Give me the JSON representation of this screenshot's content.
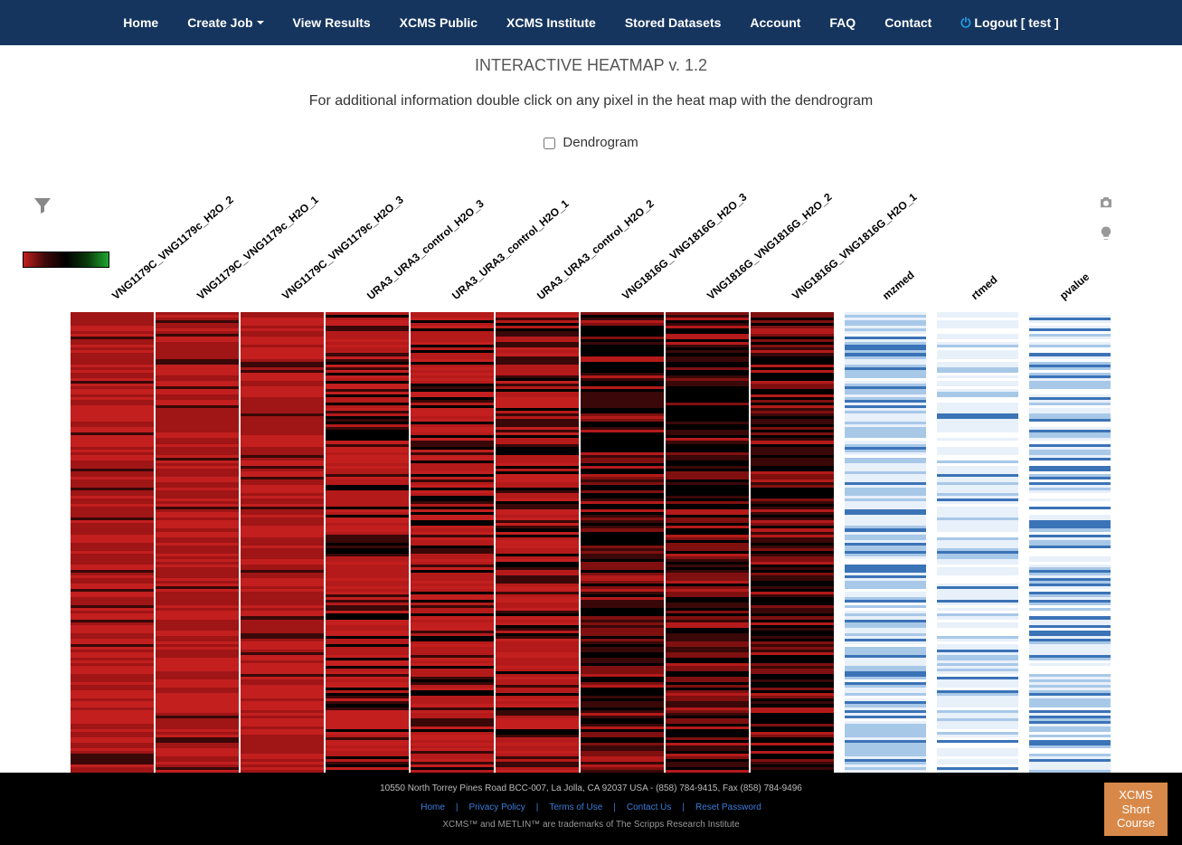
{
  "nav": {
    "items": [
      "Home",
      "Create Job",
      "View Results",
      "XCMS Public",
      "XCMS Institute",
      "Stored Datasets",
      "Account",
      "FAQ",
      "Contact"
    ],
    "dropdown_index": 1,
    "logout_label": "Logout [ test ]"
  },
  "page": {
    "title": "INTERACTIVE HEATMAP v. 1.2",
    "subtitle": "For additional information double click on any pixel in the heat map with the dendrogram",
    "dendrogram_label": "Dendrogram",
    "dendrogram_checked": false
  },
  "heatmap": {
    "column_labels": [
      "VNG1179C_VNG1179c_H2O_2",
      "VNG1179C_VNG1179c_H2O_1",
      "VNG1179C_VNG1179c_H2O_3",
      "URA3_URA3_control_H2O_3",
      "URA3_URA3_control_H2O_1",
      "URA3_URA3_control_H2O_2",
      "VNG1816G_VNG1816G_H2O_3",
      "VNG1816G_VNG1816G_H2O_2",
      "VNG1816G_VNG1816G_H2O_1",
      "mzmed",
      "rtmed",
      "pvalue"
    ],
    "sample_col_width": 94,
    "metric_col_width": 90,
    "metric_gap": 8,
    "rows": 180,
    "groups": [
      {
        "cols": [
          0,
          1,
          2
        ],
        "palette": "red_bright"
      },
      {
        "cols": [
          3,
          4,
          5
        ],
        "palette": "red_mixed"
      },
      {
        "cols": [
          6,
          7,
          8
        ],
        "palette": "red_dark"
      }
    ],
    "metric_palettes": {
      "mzmed": "blue_dense",
      "rtmed": "blue_light",
      "pvalue": "blue_varied"
    },
    "colors": {
      "red_bright_base": "#c31f1f",
      "red_bright_alt": "#a01515",
      "red_mixed_base": "#b51a1a",
      "red_mixed_dark": "#3a0808",
      "black": "#000000",
      "red_dark_base": "#801010",
      "blue_light": "#e8f0fa",
      "blue_mid": "#a8c8e8",
      "blue_dark": "#3b73b7",
      "white": "#ffffff"
    },
    "legend_gradient": [
      "#c31f1f",
      "#400808",
      "#000000",
      "#0a3a0a",
      "#1fa52f"
    ]
  },
  "footer": {
    "address": "10550 North Torrey Pines Road BCC-007, La Jolla, CA 92037 USA - (858) 784-9415, Fax (858) 784-9496",
    "links": [
      "Home",
      "Privacy Policy",
      "Terms of Use",
      "Contact Us",
      "Reset Password"
    ],
    "trademark": "XCMS™ and METLIN™ are trademarks of The Scripps Research Institute",
    "badge": "XCMS Short Course"
  }
}
